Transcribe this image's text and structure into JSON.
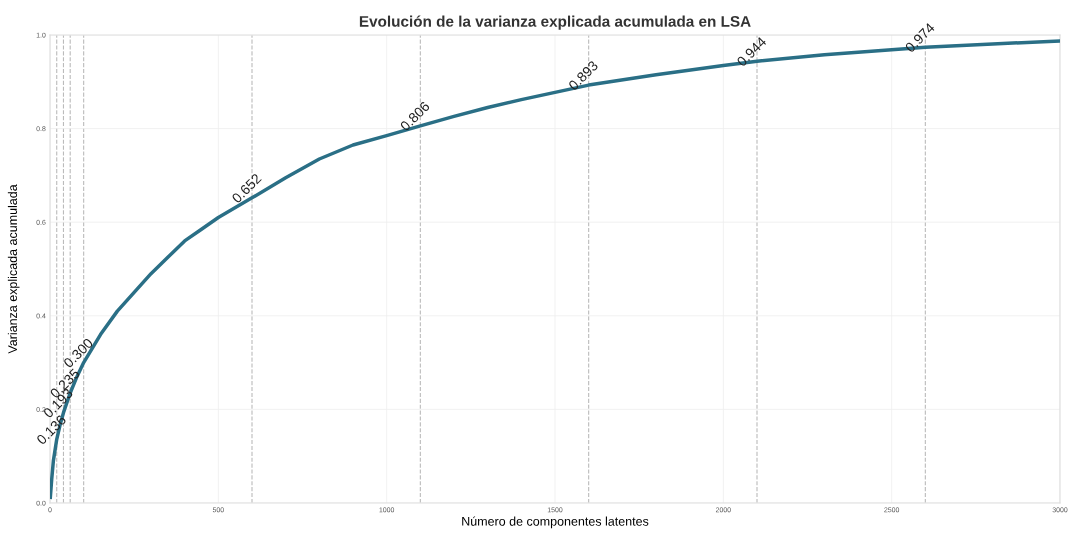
{
  "chart_data": {
    "type": "line",
    "title": "Evolución de la varianza explicada acumulada en LSA",
    "xlabel": "Número de componentes latentes",
    "ylabel": "Varianza explicada acumulada",
    "x": [
      1,
      5,
      10,
      20,
      30,
      40,
      60,
      80,
      100,
      150,
      200,
      250,
      300,
      350,
      400,
      450,
      500,
      600,
      700,
      800,
      900,
      1000,
      1100,
      1200,
      1300,
      1400,
      1600,
      1800,
      2000,
      2100,
      2300,
      2400,
      2600,
      2800,
      3000
    ],
    "series": [
      {
        "color": "#2a6f86",
        "values": [
          0.012,
          0.05,
          0.09,
          0.136,
          0.167,
          0.193,
          0.235,
          0.27,
          0.3,
          0.36,
          0.41,
          0.45,
          0.49,
          0.525,
          0.56,
          0.585,
          0.61,
          0.652,
          0.695,
          0.735,
          0.765,
          0.785,
          0.806,
          0.826,
          0.845,
          0.862,
          0.893,
          0.915,
          0.935,
          0.944,
          0.958,
          0.963,
          0.974,
          0.981,
          0.987
        ]
      }
    ],
    "xlim": [
      0,
      3000
    ],
    "xticks": [
      0,
      500,
      1000,
      1500,
      2000,
      2500,
      3000
    ],
    "ylim": [
      0,
      1.0
    ],
    "yticks": [
      {
        "value": 0,
        "label": "0.0"
      },
      0.2,
      0.4,
      0.6,
      0.8,
      {
        "value": 1,
        "label": "1.0"
      }
    ],
    "grid": true,
    "line_style": "solid",
    "marker": "none",
    "ref_lines": [
      {
        "axis": "x",
        "value": 20,
        "color": "#bbbbbb",
        "line_style": "dashed"
      },
      {
        "axis": "x",
        "value": 40,
        "color": "#bbbbbb",
        "line_style": "dashed"
      },
      {
        "axis": "x",
        "value": 60,
        "color": "#bbbbbb",
        "line_style": "dashed"
      },
      {
        "axis": "x",
        "value": 100,
        "color": "#bbbbbb",
        "line_style": "dashed"
      },
      {
        "axis": "x",
        "value": 600,
        "color": "#bbbbbb",
        "line_style": "dashed"
      },
      {
        "axis": "x",
        "value": 1100,
        "color": "#bbbbbb",
        "line_style": "dashed"
      },
      {
        "axis": "x",
        "value": 1600,
        "color": "#bbbbbb",
        "line_style": "dashed"
      },
      {
        "axis": "x",
        "value": 2100,
        "color": "#bbbbbb",
        "line_style": "dashed"
      },
      {
        "axis": "x",
        "value": 2600,
        "color": "#bbbbbb",
        "line_style": "dashed"
      }
    ],
    "annotations": [
      {
        "text": "0.136",
        "x": 20,
        "y": 0.136
      },
      {
        "text": "0.193",
        "x": 40,
        "y": 0.193
      },
      {
        "text": "0.235",
        "x": 60,
        "y": 0.235
      },
      {
        "text": "0.300",
        "x": 100,
        "y": 0.3
      },
      {
        "text": "0.652",
        "x": 600,
        "y": 0.652
      },
      {
        "text": "0.806",
        "x": 1100,
        "y": 0.806
      },
      {
        "text": "0.893",
        "x": 1600,
        "y": 0.893
      },
      {
        "text": "0.944",
        "x": 2100,
        "y": 0.944
      },
      {
        "text": "0.974",
        "x": 2600,
        "y": 0.974
      }
    ]
  }
}
